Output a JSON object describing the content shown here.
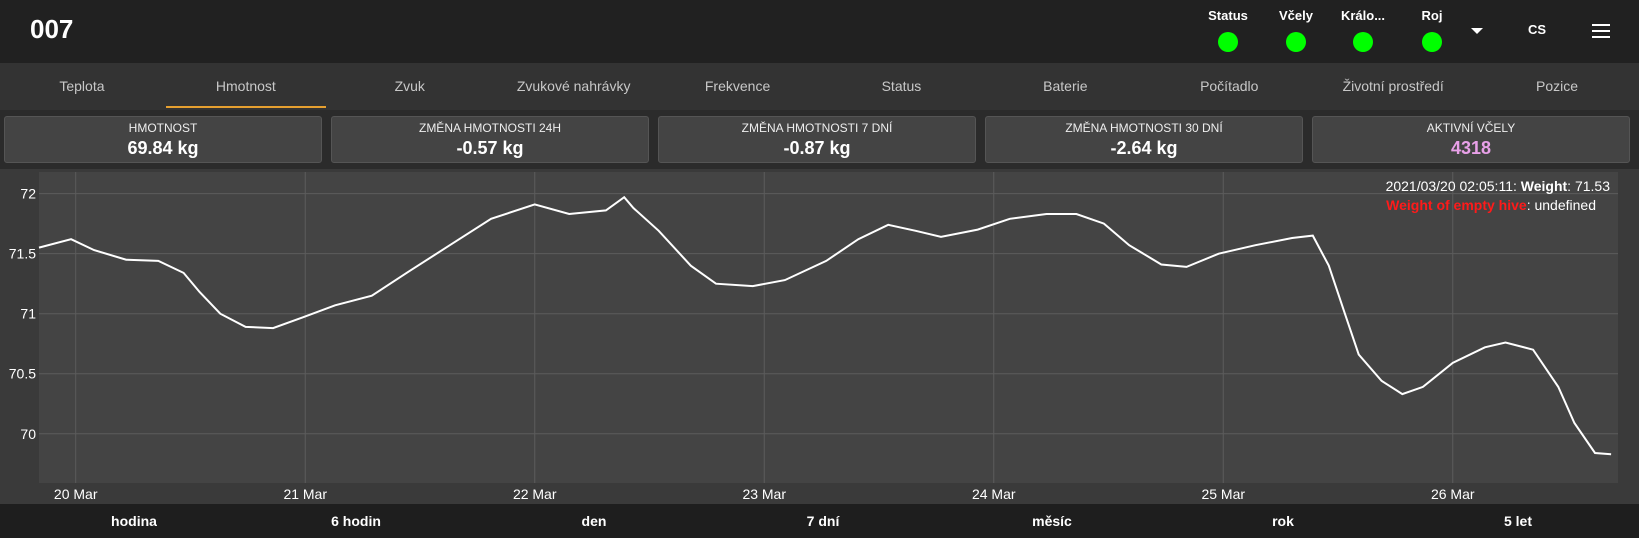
{
  "header": {
    "title": "007",
    "indicators": [
      {
        "label": "Status",
        "color": "#00ff00"
      },
      {
        "label": "Včely",
        "color": "#00ff00"
      },
      {
        "label": "Králo...",
        "color": "#00ff00"
      },
      {
        "label": "Roj",
        "color": "#00ff00"
      }
    ],
    "language": "CS"
  },
  "tabs": [
    "Teplota",
    "Hmotnost",
    "Zvuk",
    "Zvukové nahrávky",
    "Frekvence",
    "Status",
    "Baterie",
    "Počítadlo",
    "Životní prostředí",
    "Pozice"
  ],
  "active_tab": 1,
  "stats": [
    {
      "label": "HMOTNOST",
      "value": "69.84 kg"
    },
    {
      "label": "ZMĚNA HMOTNOSTI 24H",
      "value": "-0.57 kg"
    },
    {
      "label": "ZMĚNA HMOTNOSTI 7 DNÍ",
      "value": "-0.87 kg"
    },
    {
      "label": "ZMĚNA HMOTNOSTI 30 DNÍ",
      "value": "-2.64 kg"
    },
    {
      "label": "AKTIVNÍ VČELY",
      "value": "4318",
      "color": "#e8a0e8"
    }
  ],
  "chart_data": {
    "type": "line",
    "color": "#ffffff",
    "grid": true,
    "x": [
      19.84,
      19.98,
      20.08,
      20.22,
      20.36,
      20.47,
      20.54,
      20.63,
      20.74,
      20.86,
      20.99,
      21.13,
      21.29,
      21.45,
      21.63,
      21.81,
      22.0,
      22.15,
      22.31,
      22.39,
      22.43,
      22.54,
      22.68,
      22.79,
      22.95,
      23.09,
      23.27,
      23.41,
      23.54,
      23.66,
      23.77,
      23.93,
      24.07,
      24.23,
      24.36,
      24.48,
      24.59,
      24.73,
      24.84,
      24.98,
      25.14,
      25.3,
      25.39,
      25.46,
      25.53,
      25.59,
      25.69,
      25.78,
      25.87,
      26.0,
      26.14,
      26.23,
      26.35,
      26.46,
      26.53,
      26.62,
      26.69
    ],
    "values": [
      71.55,
      71.62,
      71.53,
      71.45,
      71.44,
      71.34,
      71.18,
      71.0,
      70.89,
      70.88,
      70.97,
      71.07,
      71.15,
      71.35,
      71.57,
      71.79,
      71.91,
      71.83,
      71.86,
      71.97,
      71.88,
      71.69,
      71.4,
      71.25,
      71.23,
      71.28,
      71.44,
      71.62,
      71.74,
      71.69,
      71.64,
      71.7,
      71.79,
      71.83,
      71.83,
      71.75,
      71.57,
      71.41,
      71.39,
      71.5,
      71.57,
      71.63,
      71.65,
      71.4,
      71.0,
      70.66,
      70.44,
      70.33,
      70.39,
      70.59,
      70.72,
      70.76,
      70.7,
      70.39,
      70.09,
      69.84,
      69.83
    ],
    "xlim": [
      19.84,
      26.72
    ],
    "ylim": [
      69.59,
      72.18
    ],
    "xticks": [
      {
        "value": 20,
        "label": "20 Mar"
      },
      {
        "value": 21,
        "label": "21 Mar"
      },
      {
        "value": 22,
        "label": "22 Mar"
      },
      {
        "value": 23,
        "label": "23 Mar"
      },
      {
        "value": 24,
        "label": "24 Mar"
      },
      {
        "value": 25,
        "label": "25 Mar"
      },
      {
        "value": 26,
        "label": "26 Mar"
      }
    ],
    "yticks": [
      70,
      70.5,
      71,
      71.5,
      72
    ],
    "tooltip": {
      "time": "2021/03/20 02:05:11: ",
      "label": "Weight",
      "value": ": 71.53",
      "empty_label": "Weight of empty hive",
      "empty_value": ": undefined"
    }
  },
  "range_buttons": [
    "hodina",
    "6 hodin",
    "den",
    "7 dní",
    "měsíc",
    "rok",
    "5 let"
  ]
}
